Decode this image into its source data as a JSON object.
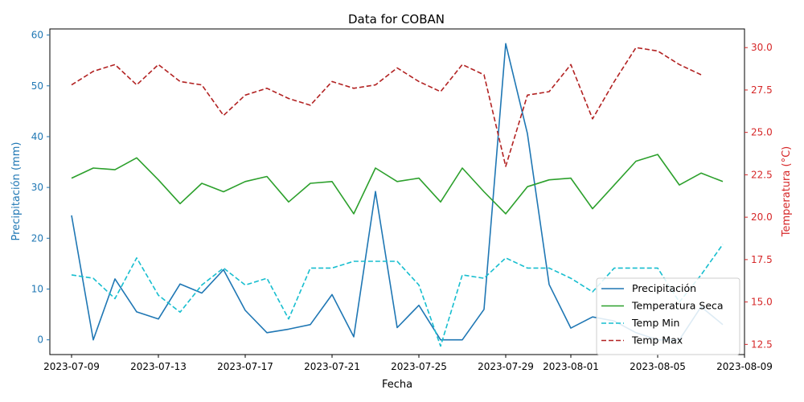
{
  "chart_data": {
    "type": "line",
    "title": "Data for COBAN",
    "xlabel": "Fecha",
    "ylabel_left": "Precipitación (mm)",
    "ylabel_right": "Temperatura (°C)",
    "x_tick_labels": [
      "2023-07-09",
      "2023-07-13",
      "2023-07-17",
      "2023-07-21",
      "2023-07-25",
      "2023-07-29",
      "2023-08-01",
      "2023-08-05",
      "2023-08-09"
    ],
    "x_tick_dates": [
      "2023-07-09",
      "2023-07-13",
      "2023-07-17",
      "2023-07-21",
      "2023-07-25",
      "2023-07-29",
      "2023-08-01",
      "2023-08-05",
      "2023-08-09"
    ],
    "y_left_ticks": [
      0,
      10,
      20,
      30,
      40,
      50,
      60
    ],
    "y_left_lim": [
      -2.9,
      61.2
    ],
    "y_right_ticks": [
      12.5,
      15.0,
      17.5,
      20.0,
      22.5,
      25.0,
      27.5,
      30.0
    ],
    "y_right_lim": [
      11.9,
      31.1
    ],
    "x_lim": [
      "2023-07-08",
      "2023-08-09"
    ],
    "dates": [
      "2023-07-09",
      "2023-07-10",
      "2023-07-11",
      "2023-07-12",
      "2023-07-13",
      "2023-07-14",
      "2023-07-15",
      "2023-07-16",
      "2023-07-17",
      "2023-07-18",
      "2023-07-19",
      "2023-07-20",
      "2023-07-21",
      "2023-07-22",
      "2023-07-23",
      "2023-07-24",
      "2023-07-25",
      "2023-07-26",
      "2023-07-27",
      "2023-07-28",
      "2023-07-29",
      "2023-07-30",
      "2023-07-31",
      "2023-08-01",
      "2023-08-02",
      "2023-08-03",
      "2023-08-04",
      "2023-08-05",
      "2023-08-06",
      "2023-08-07",
      "2023-08-08"
    ],
    "series": [
      {
        "name": "Precipitación",
        "axis": "left",
        "color": "#1f77b4",
        "dash": "solid",
        "values": [
          24.5,
          0.0,
          12.0,
          5.5,
          4.1,
          11.0,
          9.2,
          13.8,
          5.8,
          1.4,
          2.1,
          3.0,
          8.9,
          0.6,
          29.2,
          2.4,
          6.8,
          0.0,
          0.0,
          6.0,
          58.3,
          40.6,
          10.9,
          2.3,
          4.5,
          3.7,
          1.4,
          0.0,
          0.0,
          6.5,
          3.0
        ]
      },
      {
        "name": "Temperatura Seca",
        "axis": "right",
        "color": "#2ca02c",
        "dash": "solid",
        "values": [
          22.3,
          22.9,
          22.8,
          23.5,
          22.2,
          20.8,
          22.0,
          21.5,
          22.1,
          22.4,
          20.9,
          22.0,
          22.1,
          20.2,
          22.9,
          22.1,
          22.3,
          20.9,
          22.9,
          21.5,
          20.2,
          21.8,
          22.2,
          22.3,
          20.5,
          21.9,
          23.3,
          23.7,
          21.9,
          22.6,
          22.1
        ]
      },
      {
        "name": "Temp Min",
        "axis": "right",
        "color": "#17becf",
        "dash": "dashed",
        "values": [
          16.6,
          16.4,
          15.2,
          17.6,
          15.4,
          14.4,
          16.0,
          17.0,
          16.0,
          16.4,
          14.0,
          17.0,
          17.0,
          17.4,
          17.4,
          17.4,
          16.0,
          12.4,
          16.6,
          16.4,
          17.6,
          17.0,
          17.0,
          16.4,
          15.6,
          17.0,
          17.0,
          17.0,
          15.0,
          16.6,
          18.4
        ]
      },
      {
        "name": "Temp Max",
        "axis": "right",
        "color": "#b22222",
        "dash": "dashed",
        "values": [
          27.8,
          28.6,
          29.0,
          27.8,
          29.0,
          28.0,
          27.8,
          26.0,
          27.2,
          27.6,
          27.0,
          26.6,
          28.0,
          27.6,
          27.8,
          28.8,
          28.0,
          27.4,
          29.0,
          28.4,
          23.0,
          27.2,
          27.4,
          29.0,
          25.8,
          28.0,
          30.0,
          29.8,
          29.0,
          28.4,
          null
        ]
      }
    ],
    "legend_position": "lower-right",
    "grid": false
  }
}
